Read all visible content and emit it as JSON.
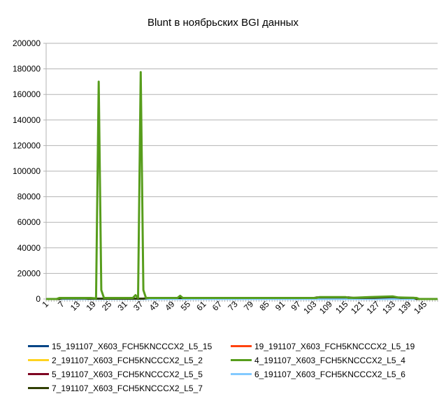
{
  "chart_data": {
    "type": "line",
    "title": "Blunt в ноябрьских BGI данных",
    "xlabel": "",
    "ylabel": "",
    "ylim": [
      0,
      200000
    ],
    "yticks": [
      0,
      20000,
      40000,
      60000,
      80000,
      100000,
      120000,
      140000,
      160000,
      180000,
      200000
    ],
    "xrange": [
      1,
      150
    ],
    "xtick_labels": [
      "1",
      "7",
      "13",
      "19",
      "25",
      "31",
      "37",
      "43",
      "49",
      "55",
      "61",
      "67",
      "73",
      "79",
      "85",
      "91",
      "97",
      "103",
      "109",
      "115",
      "121",
      "127",
      "133",
      "139",
      "145"
    ],
    "grid": "horizontal",
    "legend_position": "bottom",
    "series": [
      {
        "name": "15_191107_X603_FCH5KNCCCX2_L5_15",
        "color": "#004586",
        "points": [
          [
            1,
            0
          ],
          [
            150,
            0
          ]
        ]
      },
      {
        "name": "19_191107_X603_FCH5KNCCCX2_L5_19",
        "color": "#ff420e",
        "points": [
          [
            1,
            0
          ],
          [
            150,
            0
          ]
        ]
      },
      {
        "name": "2_191107_X603_FCH5KNCCCX2_L5_2",
        "color": "#ffd320",
        "points": [
          [
            1,
            0
          ],
          [
            150,
            0
          ]
        ]
      },
      {
        "name": "4_191107_X603_FCH5KNCCCX2_L5_4",
        "color": "#579d1c",
        "points": [
          [
            1,
            0
          ],
          [
            5,
            0
          ],
          [
            6,
            800
          ],
          [
            18,
            800
          ],
          [
            20,
            500
          ],
          [
            21,
            170000
          ],
          [
            22,
            7000
          ],
          [
            23,
            800
          ],
          [
            34,
            800
          ],
          [
            35,
            3000
          ],
          [
            36,
            800
          ],
          [
            37,
            177500
          ],
          [
            38,
            7000
          ],
          [
            39,
            800
          ],
          [
            51,
            800
          ],
          [
            52,
            2500
          ],
          [
            53,
            800
          ],
          [
            104,
            800
          ],
          [
            105,
            1500
          ],
          [
            115,
            1500
          ],
          [
            116,
            800
          ],
          [
            118,
            1000
          ],
          [
            124,
            1500
          ],
          [
            133,
            2000
          ],
          [
            135,
            1200
          ],
          [
            142,
            800
          ],
          [
            143,
            0
          ],
          [
            150,
            0
          ]
        ]
      },
      {
        "name": "5_191107_X603_FCH5KNCCCX2_L5_5",
        "color": "#7e0021",
        "points": [
          [
            1,
            0
          ],
          [
            150,
            0
          ]
        ]
      },
      {
        "name": "6_191107_X603_FCH5KNCCCX2_L5_6",
        "color": "#83caff",
        "points": [
          [
            1,
            0
          ],
          [
            150,
            0
          ]
        ]
      },
      {
        "name": "7_191107_X603_FCH5KNCCCX2_L5_7",
        "color": "#314004",
        "points": [
          [
            1,
            0
          ],
          [
            6,
            0
          ],
          [
            7,
            500
          ],
          [
            16,
            500
          ],
          [
            17,
            300
          ],
          [
            38,
            300
          ],
          [
            40,
            800
          ],
          [
            103,
            800
          ],
          [
            104,
            1200
          ],
          [
            116,
            1200
          ],
          [
            118,
            900
          ],
          [
            126,
            1000
          ],
          [
            133,
            1500
          ],
          [
            136,
            900
          ],
          [
            141,
            900
          ],
          [
            142,
            0
          ],
          [
            150,
            0
          ]
        ]
      }
    ]
  }
}
